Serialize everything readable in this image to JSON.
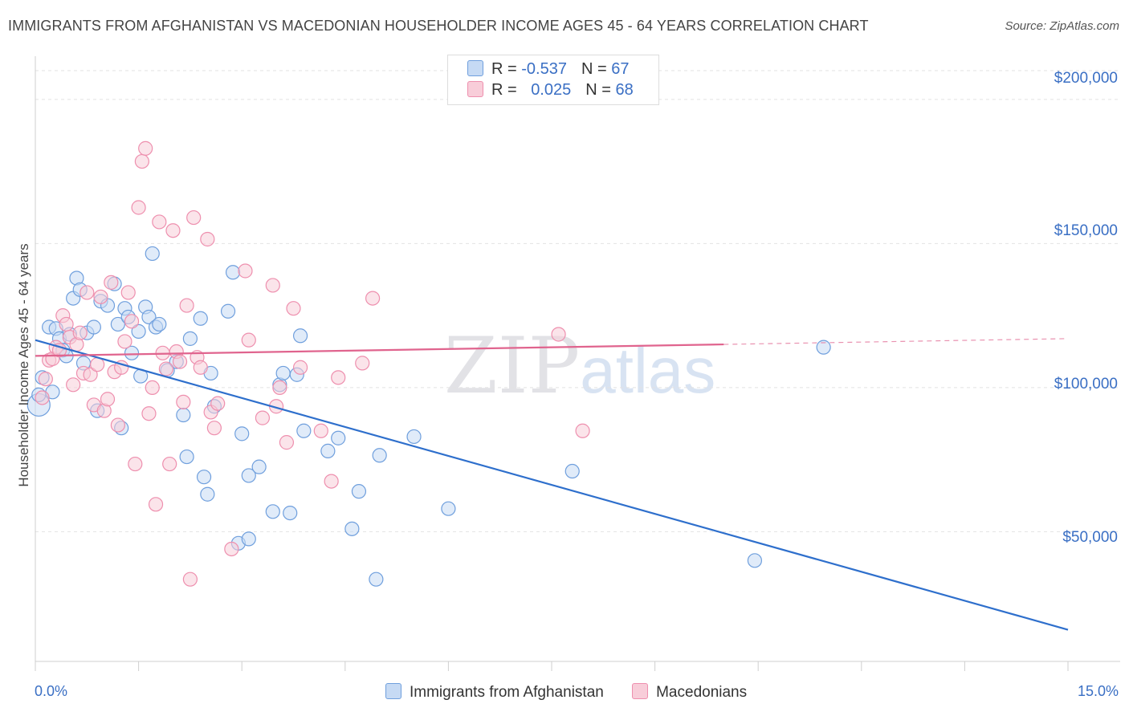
{
  "title": "IMMIGRANTS FROM AFGHANISTAN VS MACEDONIAN HOUSEHOLDER INCOME AGES 45 - 64 YEARS CORRELATION CHART",
  "source": "Source: ZipAtlas.com",
  "watermark": {
    "zip": "ZIP",
    "atlas": "atlas"
  },
  "legend_top": [
    {
      "r_label": "R = ",
      "r_value": "-0.537",
      "n_label": "N = ",
      "n_value": "67",
      "color": "#a7c6ee"
    },
    {
      "r_label": "R = ",
      "r_value": "0.025",
      "n_label": "N = ",
      "n_value": "68",
      "color": "#f5b8cb"
    }
  ],
  "chart_data": {
    "type": "scatter",
    "title": "IMMIGRANTS FROM AFGHANISTAN VS MACEDONIAN HOUSEHOLDER INCOME AGES 45 - 64 YEARS CORRELATION CHART",
    "xlabel": "",
    "ylabel": "Householder Income Ages 45 - 64 years",
    "xlim": [
      0,
      15
    ],
    "ylim": [
      5000,
      215000
    ],
    "x_tick_labels": [
      "0.0%",
      "15.0%"
    ],
    "y_ticks": [
      50000,
      100000,
      150000,
      200000
    ],
    "y_tick_labels": [
      "$50,000",
      "$100,000",
      "$150,000",
      "$200,000"
    ],
    "grid": true,
    "legend_position": "bottom",
    "series": [
      {
        "name": "Immigrants from Afghanistan",
        "color": "#6f9fdd",
        "fill": "#c6daf4",
        "trend": {
          "x": [
            0,
            15
          ],
          "y": [
            116500,
            16000
          ],
          "color": "#2e6fcc",
          "dashed_from": null
        },
        "points": [
          [
            0.05,
            94000
          ],
          [
            0.05,
            97500
          ],
          [
            0.1,
            103500
          ],
          [
            0.2,
            121000
          ],
          [
            0.25,
            98500
          ],
          [
            0.3,
            120500
          ],
          [
            0.35,
            117000
          ],
          [
            0.4,
            113000
          ],
          [
            0.45,
            111000
          ],
          [
            0.5,
            118500
          ],
          [
            0.55,
            131000
          ],
          [
            0.6,
            138000
          ],
          [
            0.65,
            134000
          ],
          [
            0.7,
            108500
          ],
          [
            0.75,
            119000
          ],
          [
            0.85,
            121000
          ],
          [
            0.9,
            92000
          ],
          [
            0.95,
            130000
          ],
          [
            1.05,
            128500
          ],
          [
            1.15,
            136000
          ],
          [
            1.2,
            122000
          ],
          [
            1.25,
            86000
          ],
          [
            1.3,
            127500
          ],
          [
            1.35,
            124500
          ],
          [
            1.4,
            112000
          ],
          [
            1.5,
            119500
          ],
          [
            1.53,
            104000
          ],
          [
            1.6,
            128000
          ],
          [
            1.65,
            124500
          ],
          [
            1.7,
            146500
          ],
          [
            1.75,
            121000
          ],
          [
            1.8,
            122000
          ],
          [
            1.92,
            106000
          ],
          [
            2.05,
            109000
          ],
          [
            2.15,
            90500
          ],
          [
            2.2,
            76000
          ],
          [
            2.25,
            117000
          ],
          [
            2.4,
            124000
          ],
          [
            2.45,
            69000
          ],
          [
            2.5,
            63000
          ],
          [
            2.55,
            105000
          ],
          [
            2.6,
            93500
          ],
          [
            2.8,
            126500
          ],
          [
            2.87,
            140000
          ],
          [
            2.95,
            46000
          ],
          [
            3.0,
            84000
          ],
          [
            3.1,
            69500
          ],
          [
            3.1,
            47500
          ],
          [
            3.25,
            72500
          ],
          [
            3.45,
            57000
          ],
          [
            3.55,
            101000
          ],
          [
            3.6,
            105000
          ],
          [
            3.7,
            56500
          ],
          [
            3.8,
            104500
          ],
          [
            3.9,
            85000
          ],
          [
            3.85,
            118000
          ],
          [
            4.25,
            78000
          ],
          [
            4.4,
            82500
          ],
          [
            4.6,
            51000
          ],
          [
            4.7,
            64000
          ],
          [
            4.95,
            33500
          ],
          [
            5.0,
            76500
          ],
          [
            5.5,
            83000
          ],
          [
            6.0,
            58000
          ],
          [
            7.8,
            71000
          ],
          [
            10.45,
            40000
          ],
          [
            11.45,
            114000
          ]
        ]
      },
      {
        "name": "Macedonians",
        "color": "#ee8fae",
        "fill": "#f8cdd9",
        "trend": {
          "x": [
            0,
            15
          ],
          "y": [
            111000,
            117000
          ],
          "color": "#e0648e",
          "dashed_from": 10.0
        },
        "points": [
          [
            0.1,
            96500
          ],
          [
            0.15,
            103000
          ],
          [
            0.2,
            109500
          ],
          [
            0.25,
            110000
          ],
          [
            0.3,
            114000
          ],
          [
            0.35,
            113000
          ],
          [
            0.4,
            125000
          ],
          [
            0.45,
            122000
          ],
          [
            0.5,
            117500
          ],
          [
            0.55,
            101000
          ],
          [
            0.6,
            115000
          ],
          [
            0.65,
            119000
          ],
          [
            0.7,
            105000
          ],
          [
            0.75,
            133000
          ],
          [
            0.8,
            104500
          ],
          [
            0.85,
            94000
          ],
          [
            0.9,
            108000
          ],
          [
            0.95,
            131500
          ],
          [
            1.0,
            92000
          ],
          [
            1.05,
            96000
          ],
          [
            1.1,
            136500
          ],
          [
            1.15,
            105500
          ],
          [
            1.2,
            87000
          ],
          [
            1.25,
            107000
          ],
          [
            1.3,
            116000
          ],
          [
            1.35,
            133000
          ],
          [
            1.4,
            123000
          ],
          [
            1.45,
            73500
          ],
          [
            1.5,
            162500
          ],
          [
            1.55,
            178500
          ],
          [
            1.6,
            183000
          ],
          [
            1.65,
            91000
          ],
          [
            1.7,
            100000
          ],
          [
            1.75,
            59500
          ],
          [
            1.8,
            157500
          ],
          [
            1.85,
            112000
          ],
          [
            1.9,
            106500
          ],
          [
            1.95,
            73500
          ],
          [
            2.0,
            154500
          ],
          [
            2.05,
            112500
          ],
          [
            2.1,
            109000
          ],
          [
            2.15,
            95000
          ],
          [
            2.2,
            128500
          ],
          [
            2.25,
            33500
          ],
          [
            2.3,
            159000
          ],
          [
            2.35,
            110500
          ],
          [
            2.4,
            107000
          ],
          [
            2.5,
            151500
          ],
          [
            2.55,
            91500
          ],
          [
            2.6,
            86000
          ],
          [
            2.65,
            94500
          ],
          [
            2.85,
            44000
          ],
          [
            3.05,
            140500
          ],
          [
            3.1,
            116500
          ],
          [
            3.3,
            89500
          ],
          [
            3.45,
            135500
          ],
          [
            3.5,
            93500
          ],
          [
            3.55,
            100000
          ],
          [
            3.65,
            81000
          ],
          [
            3.75,
            127500
          ],
          [
            3.85,
            107000
          ],
          [
            4.15,
            85000
          ],
          [
            4.3,
            67500
          ],
          [
            4.4,
            103500
          ],
          [
            4.75,
            108500
          ],
          [
            4.9,
            131000
          ],
          [
            7.95,
            85000
          ],
          [
            7.6,
            118500
          ]
        ]
      }
    ]
  }
}
